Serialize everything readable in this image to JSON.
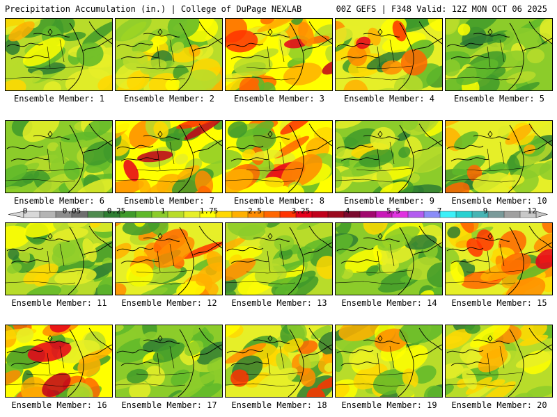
{
  "header": {
    "title": "Precipitation Accumulation (in.) | College of DuPage NEXLAB",
    "run_info": "00Z GEFS | F348 Valid: 12Z MON OCT 06 2025"
  },
  "colorbar": {
    "labels": [
      "0",
      "0.05",
      "0.25",
      "1",
      "1.75",
      "2.5",
      "3.25",
      "4",
      "5.5",
      "7",
      "9",
      "12"
    ],
    "colors": [
      "#d8d8d8",
      "#b4b4b4",
      "#8c8c8c",
      "#6e6e6e",
      "#4f8a4f",
      "#2e7d32",
      "#3f9a2a",
      "#5fb82a",
      "#8ccc2a",
      "#b8dc2a",
      "#e6ef28",
      "#ffff00",
      "#ffd800",
      "#ffb000",
      "#ff8c00",
      "#ff6600",
      "#ff3300",
      "#e6001a",
      "#c0001a",
      "#9a0a1e",
      "#7a0a2e",
      "#a0086e",
      "#c818b8",
      "#e032e0",
      "#b35cf0",
      "#8a8cf8",
      "#3cf0f8",
      "#28d0d0",
      "#46b4b4",
      "#7a9a9a",
      "#a0a0a0",
      "#c8c8c8"
    ]
  },
  "members": [
    {
      "label": "Ensemble Member: 1",
      "intensity": 0.35
    },
    {
      "label": "Ensemble Member: 2",
      "intensity": 0.4
    },
    {
      "label": "Ensemble Member: 3",
      "intensity": 0.75
    },
    {
      "label": "Ensemble Member: 4",
      "intensity": 0.65
    },
    {
      "label": "Ensemble Member: 5",
      "intensity": 0.15
    },
    {
      "label": "Ensemble Member: 6",
      "intensity": 0.2
    },
    {
      "label": "Ensemble Member: 7",
      "intensity": 0.7
    },
    {
      "label": "Ensemble Member: 8",
      "intensity": 0.72
    },
    {
      "label": "Ensemble Member: 9",
      "intensity": 0.22
    },
    {
      "label": "Ensemble Member: 10",
      "intensity": 0.55
    },
    {
      "label": "Ensemble Member: 11",
      "intensity": 0.3
    },
    {
      "label": "Ensemble Member: 12",
      "intensity": 0.6
    },
    {
      "label": "Ensemble Member: 13",
      "intensity": 0.45
    },
    {
      "label": "Ensemble Member: 14",
      "intensity": 0.25
    },
    {
      "label": "Ensemble Member: 15",
      "intensity": 0.68
    },
    {
      "label": "Ensemble Member: 16",
      "intensity": 0.8
    },
    {
      "label": "Ensemble Member: 17",
      "intensity": 0.18
    },
    {
      "label": "Ensemble Member: 18",
      "intensity": 0.58
    },
    {
      "label": "Ensemble Member: 19",
      "intensity": 0.38
    },
    {
      "label": "Ensemble Member: 20",
      "intensity": 0.42
    }
  ]
}
